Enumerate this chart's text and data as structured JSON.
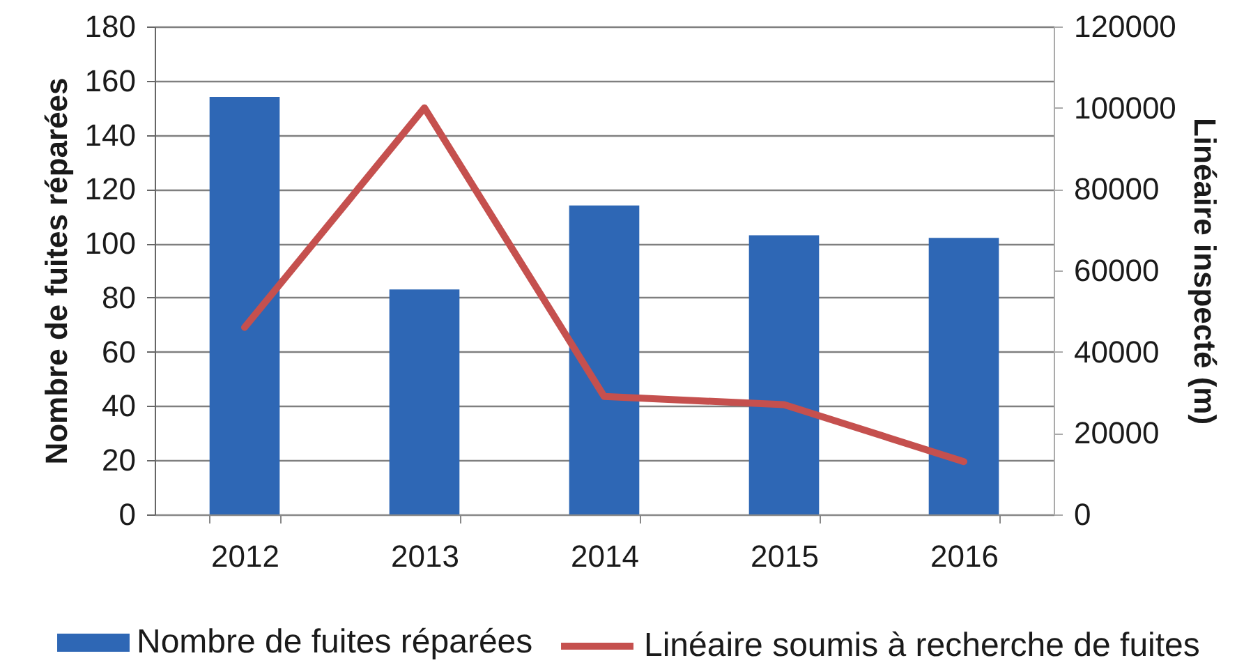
{
  "chart_data": {
    "type": "bar",
    "categories": [
      "2012",
      "2013",
      "2014",
      "2015",
      "2016"
    ],
    "series": [
      {
        "name": "Nombre de fuites réparées",
        "color": "#2e67b5",
        "values": [
          154,
          83,
          114,
          103,
          102
        ]
      },
      {
        "name": "Linéaire soumis à recherche de fuites",
        "type": "line",
        "axis": "y2",
        "color": "#c5504e",
        "values": [
          46000,
          100000,
          29000,
          27000,
          13000
        ]
      }
    ],
    "ylabel": "Nombre de fuites réparées",
    "y2label": "Linéaire inspecté (m)",
    "ylim": [
      0,
      180
    ],
    "yticks": [
      0,
      20,
      40,
      60,
      80,
      100,
      120,
      140,
      160,
      180
    ],
    "y2lim": [
      0,
      120000
    ],
    "y2ticks": [
      0,
      20000,
      40000,
      60000,
      80000,
      100000,
      120000
    ],
    "grid": "y",
    "legend": "bottom",
    "line_style": "solid"
  }
}
